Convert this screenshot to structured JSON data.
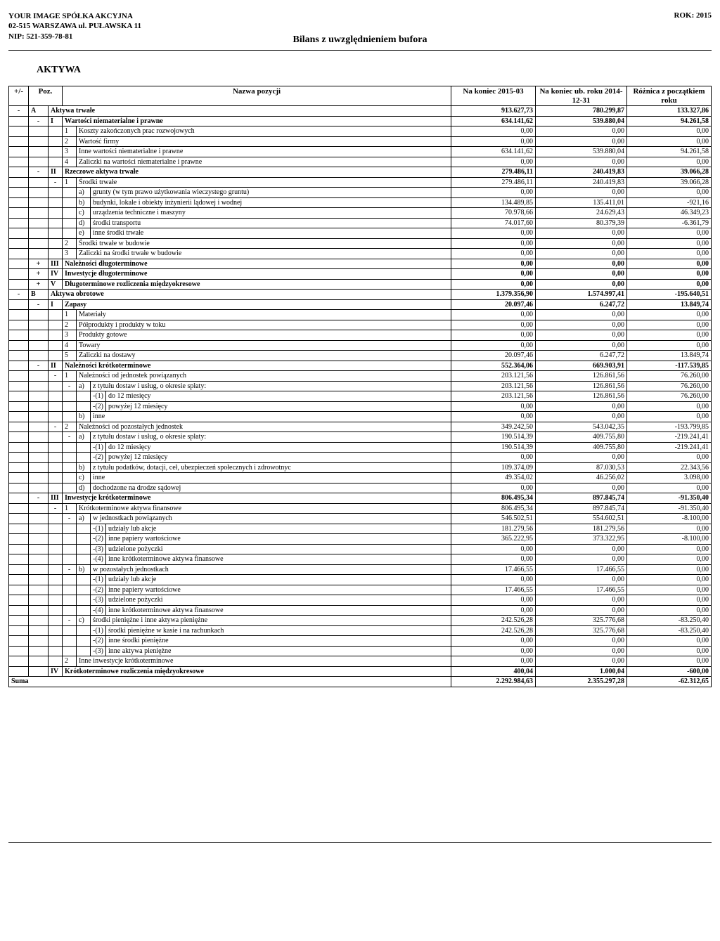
{
  "company": {
    "name": "YOUR IMAGE SPÓŁKA AKCYJNA",
    "address": "02-515 WARSZAWA ul. PUŁAWSKA 11",
    "nip": "NIP: 521-359-78-81"
  },
  "year_label": "ROK: 2015",
  "doc_title": "Bilans z uwzględnieniem bufora",
  "section_title": "AKTYWA",
  "head": {
    "pm": "+/-",
    "poz": "Poz.",
    "name": "Nazwa pozycji",
    "col1": "Na koniec 2015-03",
    "col2": "Na koniec ub. roku 2014-12-31",
    "col3": "Różnica z początkiem roku"
  },
  "r": {
    "A": {
      "pm": "-",
      "poz": "A",
      "name": "Aktywa trwałe",
      "v1": "913.627,73",
      "v2": "780.299,87",
      "v3": "133.327,86"
    },
    "AI": {
      "pm": "-",
      "poz": "I",
      "name": "Wartości niematerialne i prawne",
      "v1": "634.141,62",
      "v2": "539.880,04",
      "v3": "94.261,58"
    },
    "AI1": {
      "poz": "1",
      "name": "Koszty zakończonych prac rozwojowych",
      "v1": "0,00",
      "v2": "0,00",
      "v3": "0,00"
    },
    "AI2": {
      "poz": "2",
      "name": "Wartość firmy",
      "v1": "0,00",
      "v2": "0,00",
      "v3": "0,00"
    },
    "AI3": {
      "poz": "3",
      "name": "Inne wartości niematerialne i prawne",
      "v1": "634.141,62",
      "v2": "539.880,04",
      "v3": "94.261,58"
    },
    "AI4": {
      "poz": "4",
      "name": "Zaliczki na wartości niematerialne i prawne",
      "v1": "0,00",
      "v2": "0,00",
      "v3": "0,00"
    },
    "AII": {
      "pm": "-",
      "poz": "II",
      "name": "Rzeczowe aktywa trwałe",
      "v1": "279.486,11",
      "v2": "240.419,83",
      "v3": "39.066,28"
    },
    "AII1": {
      "pm": "-",
      "poz": "1",
      "name": "Środki trwałe",
      "v1": "279.486,11",
      "v2": "240.419,83",
      "v3": "39.066,28"
    },
    "AII1a": {
      "poz": "a)",
      "name": "grunty (w tym prawo użytkowania wieczystego gruntu)",
      "v1": "0,00",
      "v2": "0,00",
      "v3": "0,00"
    },
    "AII1b": {
      "poz": "b)",
      "name": "budynki, lokale i obiekty inżynierii lądowej i wodnej",
      "v1": "134.489,85",
      "v2": "135.411,01",
      "v3": "-921,16"
    },
    "AII1c": {
      "poz": "c)",
      "name": "urządzenia techniczne i maszyny",
      "v1": "70.978,66",
      "v2": "24.629,43",
      "v3": "46.349,23"
    },
    "AII1d": {
      "poz": "d)",
      "name": "środki transportu",
      "v1": "74.017,60",
      "v2": "80.379,39",
      "v3": "-6.361,79"
    },
    "AII1e": {
      "poz": "e)",
      "name": "inne środki trwałe",
      "v1": "0,00",
      "v2": "0,00",
      "v3": "0,00"
    },
    "AII2": {
      "poz": "2",
      "name": "Środki trwałe w budowie",
      "v1": "0,00",
      "v2": "0,00",
      "v3": "0,00"
    },
    "AII3": {
      "poz": "3",
      "name": "Zaliczki na środki trwałe w budowie",
      "v1": "0,00",
      "v2": "0,00",
      "v3": "0,00"
    },
    "AIII": {
      "pm": "+",
      "poz": "III",
      "name": "Należności długoterminowe",
      "v1": "0,00",
      "v2": "0,00",
      "v3": "0,00"
    },
    "AIV": {
      "pm": "+",
      "poz": "IV",
      "name": "Inwestycje długoterminowe",
      "v1": "0,00",
      "v2": "0,00",
      "v3": "0,00"
    },
    "AV": {
      "pm": "+",
      "poz": "V",
      "name": "Długoterminowe rozliczenia międzyokresowe",
      "v1": "0,00",
      "v2": "0,00",
      "v3": "0,00"
    },
    "B": {
      "pm": "-",
      "poz": "B",
      "name": "Aktywa obrotowe",
      "v1": "1.379.356,90",
      "v2": "1.574.997,41",
      "v3": "-195.640,51"
    },
    "BI": {
      "pm": "-",
      "poz": "I",
      "name": "Zapasy",
      "v1": "20.097,46",
      "v2": "6.247,72",
      "v3": "13.849,74"
    },
    "BI1": {
      "poz": "1",
      "name": "Materiały",
      "v1": "0,00",
      "v2": "0,00",
      "v3": "0,00"
    },
    "BI2": {
      "poz": "2",
      "name": "Półprodukty i produkty w toku",
      "v1": "0,00",
      "v2": "0,00",
      "v3": "0,00"
    },
    "BI3": {
      "poz": "3",
      "name": "Produkty gotowe",
      "v1": "0,00",
      "v2": "0,00",
      "v3": "0,00"
    },
    "BI4": {
      "poz": "4",
      "name": "Towary",
      "v1": "0,00",
      "v2": "0,00",
      "v3": "0,00"
    },
    "BI5": {
      "poz": "5",
      "name": "Zaliczki na dostawy",
      "v1": "20.097,46",
      "v2": "6.247,72",
      "v3": "13.849,74"
    },
    "BII": {
      "pm": "-",
      "poz": "II",
      "name": "Należności krótkoterminowe",
      "v1": "552.364,06",
      "v2": "669.903,91",
      "v3": "-117.539,85"
    },
    "BII1": {
      "pm": "-",
      "poz": "1",
      "name": "Należności od jednostek powiązanych",
      "v1": "203.121,56",
      "v2": "126.861,56",
      "v3": "76.260,00"
    },
    "BII1a": {
      "pm": "-",
      "poz": "a)",
      "name": "z tytułu dostaw i usług, o okresie spłaty:",
      "v1": "203.121,56",
      "v2": "126.861,56",
      "v3": "76.260,00"
    },
    "BII1a1": {
      "poz": "-(1)",
      "name": "do 12 miesięcy",
      "v1": "203.121,56",
      "v2": "126.861,56",
      "v3": "76.260,00"
    },
    "BII1a2": {
      "poz": "-(2)",
      "name": "powyżej 12 miesięcy",
      "v1": "0,00",
      "v2": "0,00",
      "v3": "0,00"
    },
    "BII1b": {
      "poz": "b)",
      "name": "inne",
      "v1": "0,00",
      "v2": "0,00",
      "v3": "0,00"
    },
    "BII2": {
      "pm": "-",
      "poz": "2",
      "name": "Należności od pozostałych jednostek",
      "v1": "349.242,50",
      "v2": "543.042,35",
      "v3": "-193.799,85"
    },
    "BII2a": {
      "pm": "-",
      "poz": "a)",
      "name": "z tytułu dostaw i usług, o okresie spłaty:",
      "v1": "190.514,39",
      "v2": "409.755,80",
      "v3": "-219.241,41"
    },
    "BII2a1": {
      "poz": "-(1)",
      "name": "do 12 miesięcy",
      "v1": "190.514,39",
      "v2": "409.755,80",
      "v3": "-219.241,41"
    },
    "BII2a2": {
      "poz": "-(2)",
      "name": "powyżej 12 miesięcy",
      "v1": "0,00",
      "v2": "0,00",
      "v3": "0,00"
    },
    "BII2b": {
      "poz": "b)",
      "name": "z tytułu podatków, dotacji, ceł, ubezpieczeń społecznych i zdrowotnyc",
      "v1": "109.374,09",
      "v2": "87.030,53",
      "v3": "22.343,56"
    },
    "BII2c": {
      "poz": "c)",
      "name": "inne",
      "v1": "49.354,02",
      "v2": "46.256,02",
      "v3": "3.098,00"
    },
    "BII2d": {
      "poz": "d)",
      "name": "dochodzone na drodze sądowej",
      "v1": "0,00",
      "v2": "0,00",
      "v3": "0,00"
    },
    "BIII": {
      "pm": "-",
      "poz": "III",
      "name": "Inwestycje krótkoterminowe",
      "v1": "806.495,34",
      "v2": "897.845,74",
      "v3": "-91.350,40"
    },
    "BIII1": {
      "pm": "-",
      "poz": "1",
      "name": "Krótkoterminowe aktywa finansowe",
      "v1": "806.495,34",
      "v2": "897.845,74",
      "v3": "-91.350,40"
    },
    "BIII1a": {
      "pm": "-",
      "poz": "a)",
      "name": "w jednostkach powiązanych",
      "v1": "546.502,51",
      "v2": "554.602,51",
      "v3": "-8.100,00"
    },
    "BIII1a1": {
      "poz": "-(1)",
      "name": "udziały lub akcje",
      "v1": "181.279,56",
      "v2": "181.279,56",
      "v3": "0,00"
    },
    "BIII1a2": {
      "poz": "-(2)",
      "name": "inne papiery wartościowe",
      "v1": "365.222,95",
      "v2": "373.322,95",
      "v3": "-8.100,00"
    },
    "BIII1a3": {
      "poz": "-(3)",
      "name": "udzielone pożyczki",
      "v1": "0,00",
      "v2": "0,00",
      "v3": "0,00"
    },
    "BIII1a4": {
      "poz": "-(4)",
      "name": "inne krótkoterminowe aktywa finansowe",
      "v1": "0,00",
      "v2": "0,00",
      "v3": "0,00"
    },
    "BIII1b": {
      "pm": "-",
      "poz": "b)",
      "name": "w pozostałych jednostkach",
      "v1": "17.466,55",
      "v2": "17.466,55",
      "v3": "0,00"
    },
    "BIII1b1": {
      "poz": "-(1)",
      "name": "udziały lub akcje",
      "v1": "0,00",
      "v2": "0,00",
      "v3": "0,00"
    },
    "BIII1b2": {
      "poz": "-(2)",
      "name": "inne papiery wartościowe",
      "v1": "17.466,55",
      "v2": "17.466,55",
      "v3": "0,00"
    },
    "BIII1b3": {
      "poz": "-(3)",
      "name": "udzielone pożyczki",
      "v1": "0,00",
      "v2": "0,00",
      "v3": "0,00"
    },
    "BIII1b4": {
      "poz": "-(4)",
      "name": "inne krótkoterminowe aktywa finansowe",
      "v1": "0,00",
      "v2": "0,00",
      "v3": "0,00"
    },
    "BIII1c": {
      "pm": "-",
      "poz": "c)",
      "name": "środki pieniężne i inne aktywa pieniężne",
      "v1": "242.526,28",
      "v2": "325.776,68",
      "v3": "-83.250,40"
    },
    "BIII1c1": {
      "poz": "-(1)",
      "name": "środki pieniężne w kasie i na rachunkach",
      "v1": "242.526,28",
      "v2": "325.776,68",
      "v3": "-83.250,40"
    },
    "BIII1c2": {
      "poz": "-(2)",
      "name": "inne środki pieniężne",
      "v1": "0,00",
      "v2": "0,00",
      "v3": "0,00"
    },
    "BIII1c3": {
      "poz": "-(3)",
      "name": "inne aktywa pieniężne",
      "v1": "0,00",
      "v2": "0,00",
      "v3": "0,00"
    },
    "BIII2": {
      "poz": "2",
      "name": "Inne inwestycje krótkoterminowe",
      "v1": "0,00",
      "v2": "0,00",
      "v3": "0,00"
    },
    "BIV": {
      "poz": "IV",
      "name": "Krótkoterminowe rozliczenia międzyokresowe",
      "v1": "400,04",
      "v2": "1.000,04",
      "v3": "-600,00"
    }
  },
  "sum": {
    "label": "Suma",
    "v1": "2.292.984,63",
    "v2": "2.355.297,28",
    "v3": "-62.312,65"
  }
}
